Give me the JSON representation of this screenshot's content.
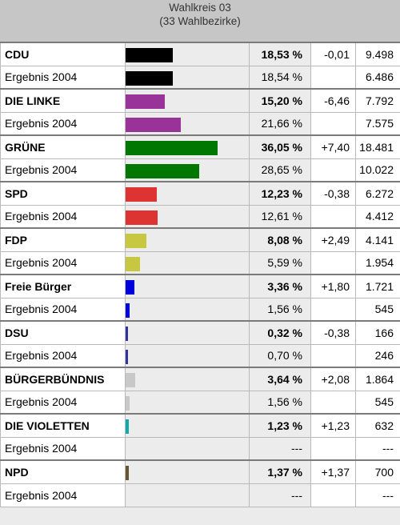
{
  "header": {
    "title": "Wahlkreis 03",
    "subtitle": "(33 Wahlbezirke)"
  },
  "chart_data": {
    "type": "bar",
    "unit": "%",
    "rows": [
      {
        "label": "CDU",
        "party": true,
        "value": 18.53,
        "pct": "18,53 %",
        "diff": "-0,01",
        "votes": "9.498",
        "color": "#000000"
      },
      {
        "label": "Ergebnis 2004",
        "party": false,
        "value": 18.54,
        "pct": "18,54 %",
        "diff": "",
        "votes": "6.486",
        "color": "#000000"
      },
      {
        "label": "DIE LINKE",
        "party": true,
        "value": 15.2,
        "pct": "15,20 %",
        "diff": "-6,46",
        "votes": "7.792",
        "color": "#993399"
      },
      {
        "label": "Ergebnis 2004",
        "party": false,
        "value": 21.66,
        "pct": "21,66 %",
        "diff": "",
        "votes": "7.575",
        "color": "#993399"
      },
      {
        "label": "GRÜNE",
        "party": true,
        "value": 36.05,
        "pct": "36,05 %",
        "diff": "+7,40",
        "votes": "18.481",
        "color": "#007700"
      },
      {
        "label": "Ergebnis 2004",
        "party": false,
        "value": 28.65,
        "pct": "28,65 %",
        "diff": "",
        "votes": "10.022",
        "color": "#007700"
      },
      {
        "label": "SPD",
        "party": true,
        "value": 12.23,
        "pct": "12,23 %",
        "diff": "-0,38",
        "votes": "6.272",
        "color": "#dd3333"
      },
      {
        "label": "Ergebnis 2004",
        "party": false,
        "value": 12.61,
        "pct": "12,61 %",
        "diff": "",
        "votes": "4.412",
        "color": "#dd3333"
      },
      {
        "label": "FDP",
        "party": true,
        "value": 8.08,
        "pct": "8,08 %",
        "diff": "+2,49",
        "votes": "4.141",
        "color": "#c8c840"
      },
      {
        "label": "Ergebnis 2004",
        "party": false,
        "value": 5.59,
        "pct": "5,59 %",
        "diff": "",
        "votes": "1.954",
        "color": "#c8c840"
      },
      {
        "label": "Freie Bürger",
        "party": true,
        "value": 3.36,
        "pct": "3,36 %",
        "diff": "+1,80",
        "votes": "1.721",
        "color": "#0000dd"
      },
      {
        "label": "Ergebnis 2004",
        "party": false,
        "value": 1.56,
        "pct": "1,56 %",
        "diff": "",
        "votes": "545",
        "color": "#0000dd"
      },
      {
        "label": "DSU",
        "party": true,
        "value": 0.32,
        "pct": "0,32 %",
        "diff": "-0,38",
        "votes": "166",
        "color": "#333399"
      },
      {
        "label": "Ergebnis 2004",
        "party": false,
        "value": 0.7,
        "pct": "0,70 %",
        "diff": "",
        "votes": "246",
        "color": "#333399"
      },
      {
        "label": "BÜRGERBÜNDNIS",
        "party": true,
        "value": 3.64,
        "pct": "3,64 %",
        "diff": "+2,08",
        "votes": "1.864",
        "color": "#c8c8c8"
      },
      {
        "label": "Ergebnis 2004",
        "party": false,
        "value": 1.56,
        "pct": "1,56 %",
        "diff": "",
        "votes": "545",
        "color": "#c8c8c8"
      },
      {
        "label": "DIE VIOLETTEN",
        "party": true,
        "value": 1.23,
        "pct": "1,23 %",
        "diff": "+1,23",
        "votes": "632",
        "color": "#11aaaa"
      },
      {
        "label": "Ergebnis 2004",
        "party": false,
        "value": 0,
        "pct": "---",
        "diff": "",
        "votes": "---",
        "color": "#11aaaa"
      },
      {
        "label": "NPD",
        "party": true,
        "value": 1.37,
        "pct": "1,37 %",
        "diff": "+1,37",
        "votes": "700",
        "color": "#665533"
      },
      {
        "label": "Ergebnis 2004",
        "party": false,
        "value": 0,
        "pct": "---",
        "diff": "",
        "votes": "---",
        "color": "#665533"
      }
    ]
  }
}
